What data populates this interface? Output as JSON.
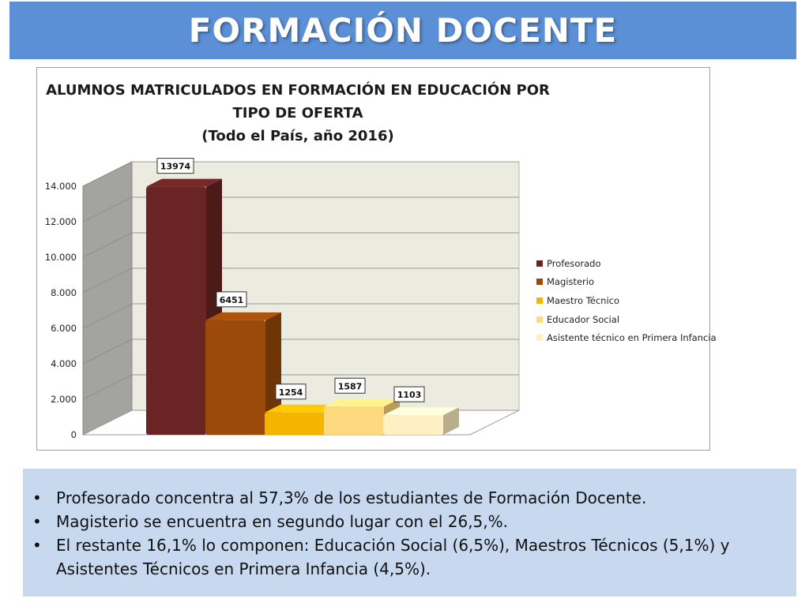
{
  "slide": {
    "title": "FORMACIÓN DOCENTE"
  },
  "chart_data": {
    "type": "bar",
    "title_lines": [
      "ALUMNOS MATRICULADOS EN FORMACIÓN EN EDUCACIÓN POR",
      "TIPO DE OFERTA",
      "(Todo el País, año 2016)"
    ],
    "categories": [
      "Profesorado",
      "Magisterio",
      "Maestro Técnico",
      "Educador Social",
      "Asistente técnico en Primera Infancia"
    ],
    "values": [
      13974,
      6451,
      1254,
      1587,
      1103
    ],
    "data_labels": [
      "13974",
      "6451",
      "1254",
      "1587",
      "1103"
    ],
    "colors": [
      "#6b2424",
      "#9c4a0a",
      "#f5b400",
      "#ffd980",
      "#fff0c4"
    ],
    "ylim": [
      0,
      14000
    ],
    "yticks": [
      0,
      2000,
      4000,
      6000,
      8000,
      10000,
      12000,
      14000
    ],
    "ytick_labels": [
      "0",
      "2.000",
      "4.000",
      "6.000",
      "8.000",
      "10.000",
      "12.000",
      "14.000"
    ],
    "legend_position": "right",
    "grid": true,
    "three_d": true
  },
  "notes": [
    "Profesorado concentra al 57,3% de los estudiantes de Formación Docente.",
    "Magisterio se encuentra en segundo lugar con el 26,5,%.",
    "El restante 16,1%  lo componen: Educación Social (6,5%), Maestros Técnicos (5,1%) y Asistentes Técnicos en Primera Infancia (4,5%)."
  ]
}
